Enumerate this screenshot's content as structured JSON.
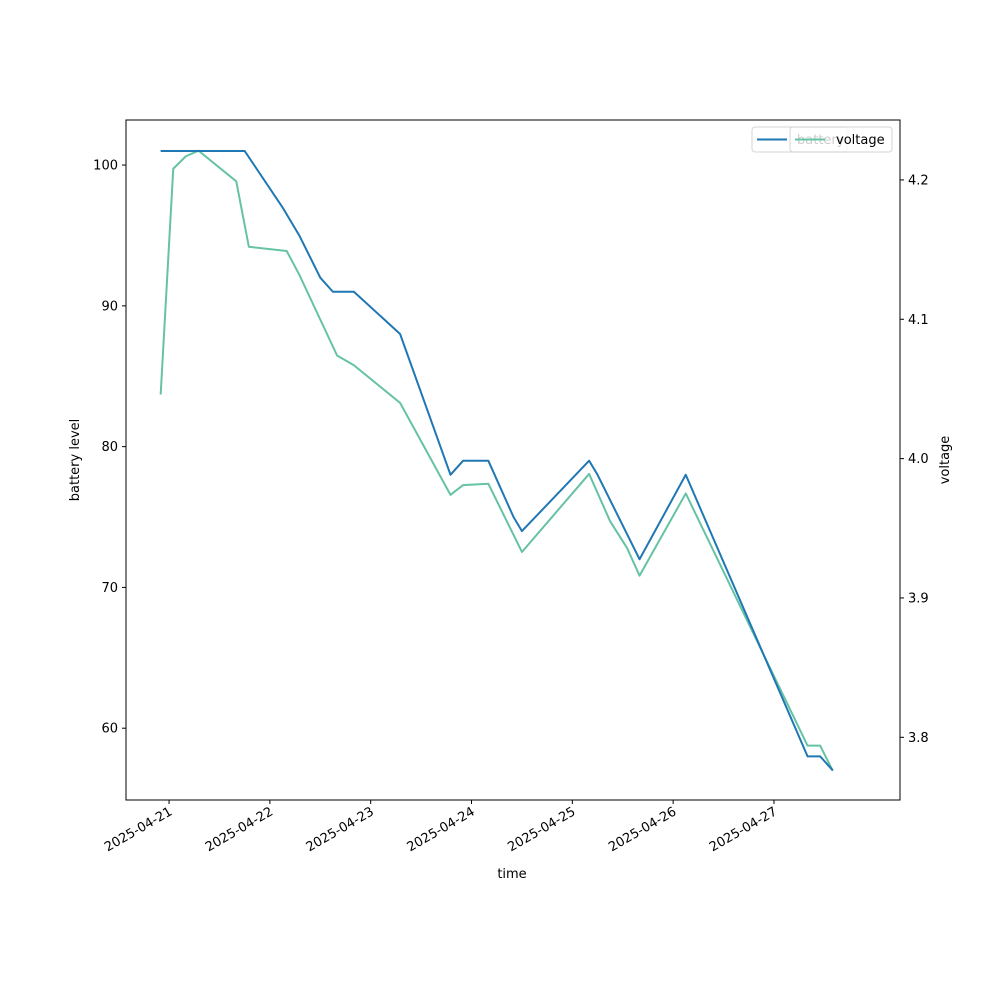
{
  "chart_data": {
    "type": "line",
    "title": "",
    "xlabel": "time",
    "ylabel_left": "battery level",
    "ylabel_right": "voltage",
    "x_ticks": [
      "2025-04-21",
      "2025-04-22",
      "2025-04-23",
      "2025-04-24",
      "2025-04-25",
      "2025-04-26",
      "2025-04-27"
    ],
    "ylim_left": [
      54.9,
      103.2
    ],
    "yticks_left": [
      "60",
      "70",
      "80",
      "90",
      "100"
    ],
    "ylim_right": [
      3.755,
      4.243
    ],
    "yticks_right": [
      "3.8",
      "3.9",
      "4.0",
      "4.1",
      "4.2"
    ],
    "xlim": [
      "2025-04-20 13:45",
      "2025-04-28 06:00"
    ],
    "grid": false,
    "legend_position": "top-right",
    "legends": [
      {
        "label": "battery",
        "color": "#1f77b4",
        "axis": "left"
      },
      {
        "label": "voltage",
        "color": "#66c2a5",
        "axis": "right"
      }
    ],
    "series": [
      {
        "name": "battery",
        "axis": "left",
        "color": "#1f77b4",
        "x": [
          "2025-04-20 22:00",
          "2025-04-21 18:00",
          "2025-04-22 03:00",
          "2025-04-22 07:00",
          "2025-04-22 12:00",
          "2025-04-22 15:00",
          "2025-04-22 20:00",
          "2025-04-23 07:00",
          "2025-04-23 19:00",
          "2025-04-23 22:00",
          "2025-04-24 04:00",
          "2025-04-24 10:00",
          "2025-04-24 12:00",
          "2025-04-25 04:00",
          "2025-04-25 06:00",
          "2025-04-25 16:00",
          "2025-04-26 03:00",
          "2025-04-27 08:00",
          "2025-04-27 11:00",
          "2025-04-27 14:00"
        ],
        "values": [
          101,
          101,
          97,
          95,
          92,
          91,
          91,
          88,
          78,
          79,
          79,
          75,
          74,
          79,
          78,
          72,
          78,
          58,
          58,
          57
        ]
      },
      {
        "name": "voltage",
        "axis": "right",
        "color": "#66c2a5",
        "x": [
          "2025-04-20 22:00",
          "2025-04-21 01:00",
          "2025-04-21 04:00",
          "2025-04-21 07:00",
          "2025-04-21 16:00",
          "2025-04-21 19:00",
          "2025-04-22 04:00",
          "2025-04-22 07:00",
          "2025-04-22 16:00",
          "2025-04-22 20:00",
          "2025-04-23 07:00",
          "2025-04-23 19:00",
          "2025-04-23 22:00",
          "2025-04-24 04:00",
          "2025-04-24 12:00",
          "2025-04-25 04:00",
          "2025-04-25 09:00",
          "2025-04-25 13:00",
          "2025-04-25 16:00",
          "2025-04-26 03:00",
          "2025-04-27 08:00",
          "2025-04-27 11:00",
          "2025-04-27 14:00"
        ],
        "values": [
          4.046,
          4.208,
          4.217,
          4.221,
          4.199,
          4.152,
          4.149,
          4.132,
          4.074,
          4.067,
          4.04,
          3.974,
          3.981,
          3.982,
          3.933,
          3.989,
          3.955,
          3.936,
          3.916,
          3.975,
          3.794,
          3.794,
          3.776
        ]
      }
    ]
  }
}
